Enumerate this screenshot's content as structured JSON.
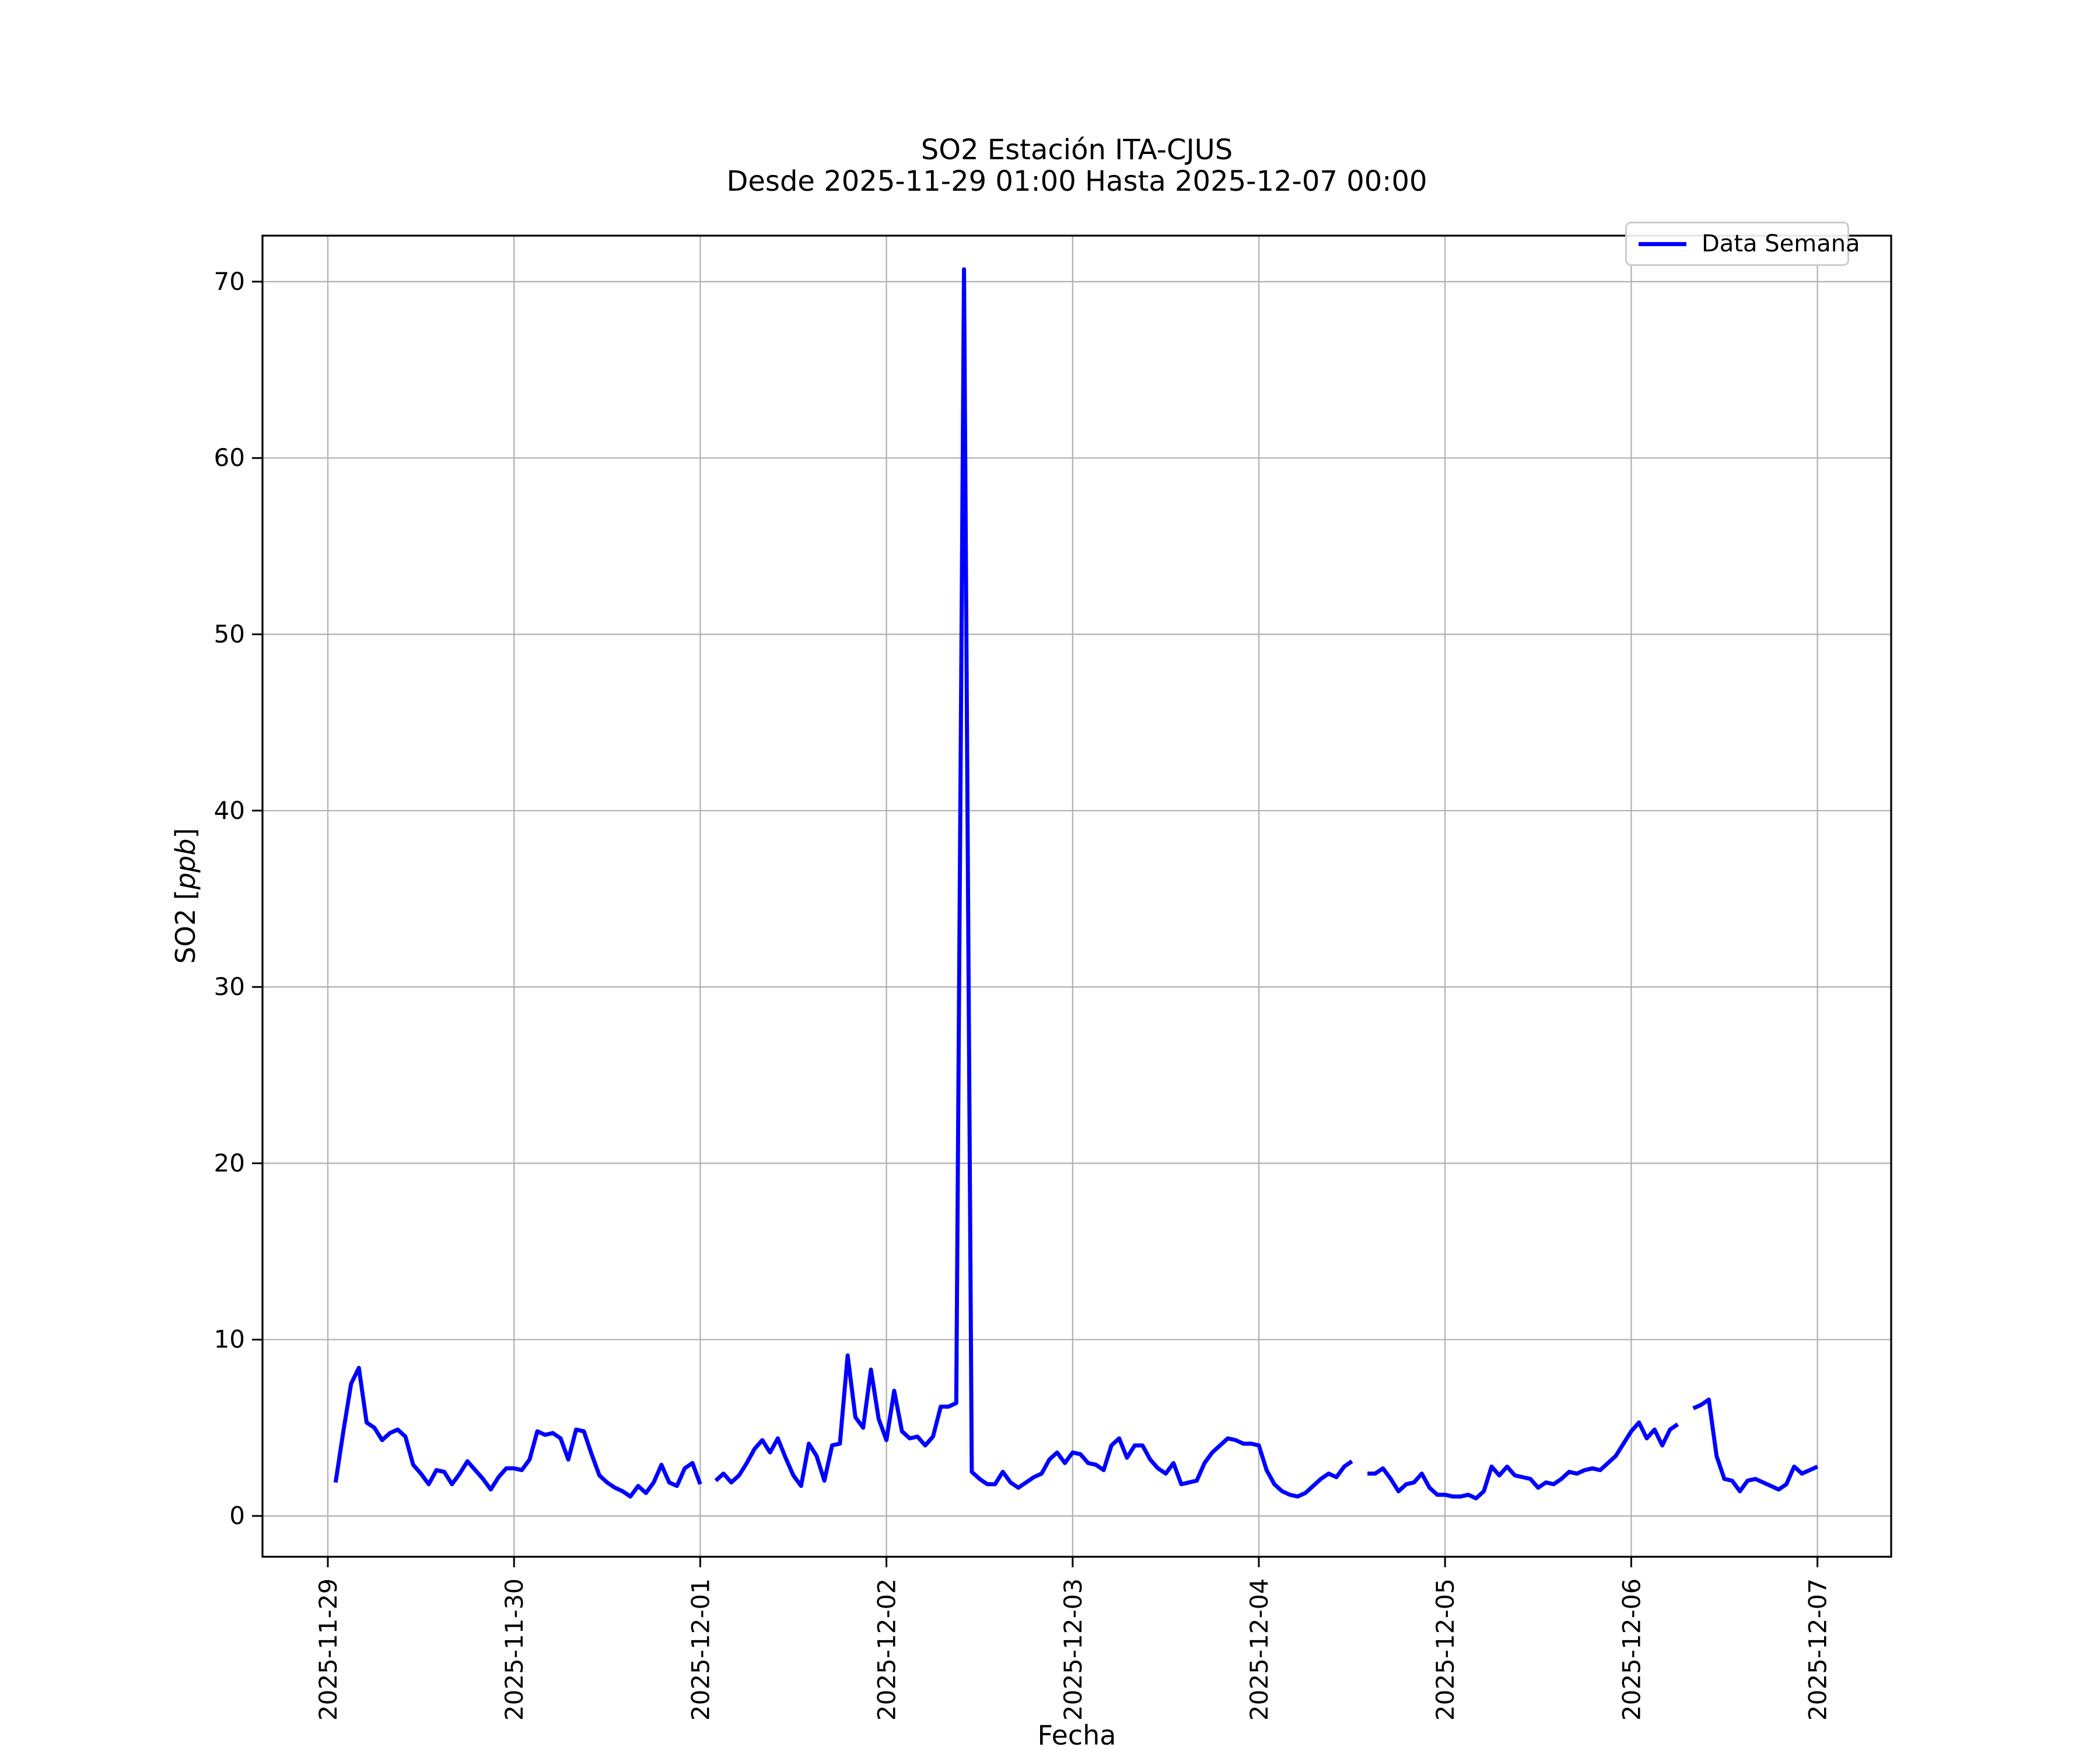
{
  "figure": {
    "title": "SO2 Estación ITA-CJUS",
    "subtitle": "Desde 2025-11-29 01:00 Hasta 2025-12-07 00:00",
    "xlabel": "Fecha",
    "ylabel_prefix": "SO2 [",
    "ylabel_italic": "ppb",
    "ylabel_suffix": "]",
    "legend": {
      "label": "Data Semana"
    }
  },
  "colors": {
    "line": "#0000ff",
    "grid": "#b0b0b0",
    "spine": "#000000",
    "legend_edge": "#cccccc",
    "text": "#000000",
    "background": "#ffffff"
  },
  "chart_data": {
    "type": "line",
    "title": "SO2 Estación ITA-CJUS",
    "subtitle": "Desde 2025-11-29 01:00 Hasta 2025-12-07 00:00",
    "xlabel": "Fecha",
    "ylabel": "SO2 [ppb]",
    "legend_entries": [
      "Data Semana"
    ],
    "legend_position": "upper right",
    "grid": true,
    "x_ticks": [
      "2025-11-29",
      "2025-11-30",
      "2025-12-01",
      "2025-12-02",
      "2025-12-03",
      "2025-12-04",
      "2025-12-05",
      "2025-12-06",
      "2025-12-07"
    ],
    "y_ticks": [
      0,
      10,
      20,
      30,
      40,
      50,
      60,
      70
    ],
    "ylim": [
      -2.4,
      72.6
    ],
    "peak": {
      "time": "2025-12-02 10:00",
      "value": 70.7
    },
    "missing_hours": [
      "2025-12-01 01:00",
      "2025-12-04 13:00",
      "2025-12-06 07:00"
    ],
    "series": [
      {
        "name": "Data Semana",
        "color": "#0000ff",
        "start": "2025-11-29 01:00",
        "step_hours": 1,
        "values": [
          1.9,
          4.8,
          7.5,
          8.4,
          5.3,
          5.0,
          4.3,
          4.7,
          4.9,
          4.5,
          2.9,
          2.4,
          1.8,
          2.6,
          2.5,
          1.8,
          2.4,
          3.1,
          2.6,
          2.1,
          1.5,
          2.2,
          2.7,
          2.7,
          2.6,
          3.2,
          4.8,
          4.6,
          4.7,
          4.4,
          3.2,
          4.9,
          4.8,
          3.5,
          2.3,
          1.9,
          1.6,
          1.4,
          1.1,
          1.7,
          1.3,
          1.9,
          2.9,
          1.9,
          1.7,
          2.7,
          3.0,
          1.8,
          null,
          2.0,
          2.4,
          1.9,
          2.3,
          3.0,
          3.8,
          4.3,
          3.6,
          4.4,
          3.3,
          2.3,
          1.7,
          4.1,
          3.4,
          2.0,
          4.0,
          4.1,
          9.1,
          5.6,
          5.0,
          8.3,
          5.5,
          4.3,
          7.1,
          4.8,
          4.4,
          4.5,
          4.0,
          4.5,
          6.2,
          6.2,
          6.4,
          70.7,
          2.5,
          2.1,
          1.8,
          1.8,
          2.5,
          1.9,
          1.6,
          1.9,
          2.2,
          2.4,
          3.2,
          3.6,
          3.0,
          3.6,
          3.5,
          3.0,
          2.9,
          2.6,
          4.0,
          4.4,
          3.3,
          4.0,
          4.0,
          3.2,
          2.7,
          2.4,
          3.0,
          1.8,
          1.9,
          2.0,
          3.0,
          3.6,
          4.0,
          4.4,
          4.3,
          4.1,
          4.1,
          4.0,
          2.6,
          1.8,
          1.4,
          1.2,
          1.1,
          1.3,
          1.7,
          2.1,
          2.4,
          2.2,
          2.8,
          3.1,
          null,
          2.4,
          2.4,
          2.7,
          2.1,
          1.4,
          1.8,
          1.9,
          2.4,
          1.6,
          1.2,
          1.2,
          1.1,
          1.1,
          1.2,
          1.0,
          1.4,
          2.8,
          2.3,
          2.8,
          2.3,
          2.2,
          2.1,
          1.6,
          1.9,
          1.8,
          2.1,
          2.5,
          2.4,
          2.6,
          2.7,
          2.6,
          3.0,
          3.4,
          4.1,
          4.8,
          5.3,
          4.4,
          4.9,
          4.0,
          4.9,
          5.2,
          null,
          6.1,
          6.3,
          6.6,
          3.4,
          2.1,
          2.0,
          1.4,
          2.0,
          2.1,
          1.9,
          1.7,
          1.5,
          1.8,
          2.8,
          2.4,
          2.6,
          2.8
        ]
      }
    ]
  }
}
